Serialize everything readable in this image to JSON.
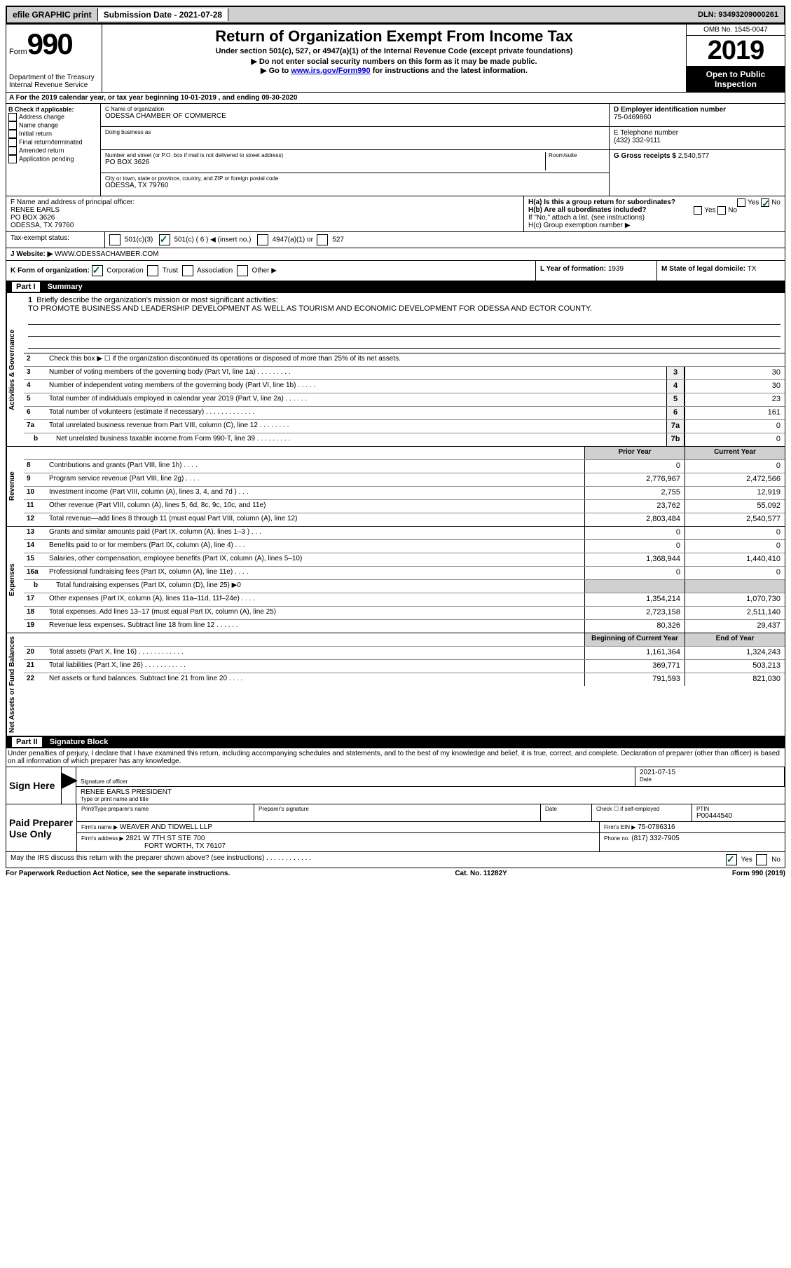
{
  "topbar": {
    "efile": "efile GRAPHIC print",
    "submission": "Submission Date - 2021-07-28",
    "dln": "DLN: 93493209000261"
  },
  "header": {
    "form_word": "Form",
    "form_num": "990",
    "dept": "Department of the Treasury",
    "irs": "Internal Revenue Service",
    "title": "Return of Organization Exempt From Income Tax",
    "subtitle": "Under section 501(c), 527, or 4947(a)(1) of the Internal Revenue Code (except private foundations)",
    "instr1": "▶ Do not enter social security numbers on this form as it may be made public.",
    "instr2_pre": "▶ Go to ",
    "instr2_link": "www.irs.gov/Form990",
    "instr2_post": " for instructions and the latest information.",
    "omb": "OMB No. 1545-0047",
    "year": "2019",
    "open_public": "Open to Public Inspection"
  },
  "row_a": "A For the 2019 calendar year, or tax year beginning 10-01-2019    , and ending 09-30-2020",
  "col_b": {
    "title": "B Check if applicable:",
    "items": [
      "Address change",
      "Name change",
      "Initial return",
      "Final return/terminated",
      "Amended return",
      "Application pending"
    ]
  },
  "col_c": {
    "name_label": "C Name of organization",
    "name": "ODESSA CHAMBER OF COMMERCE",
    "dba_label": "Doing business as",
    "addr_label": "Number and street (or P.O. box if mail is not delivered to street address)",
    "room_label": "Room/suite",
    "addr": "PO BOX 3626",
    "city_label": "City or town, state or province, country, and ZIP or foreign postal code",
    "city": "ODESSA, TX  79760",
    "officer_label": "F  Name and address of principal officer:",
    "officer_name": "RENEE EARLS",
    "officer_addr1": "PO BOX 3626",
    "officer_addr2": "ODESSA, TX  79760"
  },
  "col_d": {
    "ein_label": "D Employer identification number",
    "ein": "75-0469860",
    "phone_label": "E Telephone number",
    "phone": "(432) 332-9111",
    "gross_label": "G Gross receipts $",
    "gross": "2,540,577",
    "ha_label": "H(a)  Is this a group return for subordinates?",
    "hb_label": "H(b)  Are all subordinates included?",
    "hb_note": "If \"No,\" attach a list. (see instructions)",
    "hc_label": "H(c)  Group exemption number ▶",
    "yes": "Yes",
    "no": "No"
  },
  "tax_status": {
    "label": "Tax-exempt status:",
    "c3": "501(c)(3)",
    "c": "501(c) ( 6 ) ◀ (insert no.)",
    "a1": "4947(a)(1) or",
    "s527": "527"
  },
  "website": {
    "label": "J    Website: ▶",
    "value": "WWW.ODESSACHAMBER.COM"
  },
  "form_org": {
    "label": "K Form of organization:",
    "corp": "Corporation",
    "trust": "Trust",
    "assoc": "Association",
    "other": "Other ▶"
  },
  "year_formed": {
    "label": "L Year of formation:",
    "value": "1939"
  },
  "domicile": {
    "label": "M State of legal domicile:",
    "value": "TX"
  },
  "part1": {
    "label": "Part I",
    "title": "Summary",
    "vlabel_gov": "Activities & Governance",
    "vlabel_rev": "Revenue",
    "vlabel_exp": "Expenses",
    "vlabel_net": "Net Assets or Fund Balances",
    "line1_label": "Briefly describe the organization's mission or most significant activities:",
    "mission": "TO PROMOTE BUSINESS AND LEADERSHIP DEVELOPMENT AS WELL AS TOURISM AND ECONOMIC DEVELOPMENT FOR ODESSA AND ECTOR COUNTY.",
    "line2": "Check this box ▶ ☐  if the organization discontinued its operations or disposed of more than 25% of its net assets.",
    "lines_gov": [
      {
        "n": "3",
        "t": "Number of voting members of the governing body (Part VI, line 1a)  .    .    .    .    .    .    .    .    .",
        "box": "3",
        "v": "30"
      },
      {
        "n": "4",
        "t": "Number of independent voting members of the governing body (Part VI, line 1b)  .    .    .    .    .",
        "box": "4",
        "v": "30"
      },
      {
        "n": "5",
        "t": "Total number of individuals employed in calendar year 2019 (Part V, line 2a)  .    .    .    .    .    .",
        "box": "5",
        "v": "23"
      },
      {
        "n": "6",
        "t": "Total number of volunteers (estimate if necessary)    .    .    .    .    .    .    .    .    .    .    .    .    .",
        "box": "6",
        "v": "161"
      },
      {
        "n": "7a",
        "t": "Total unrelated business revenue from Part VIII, column (C), line 12  .    .    .    .    .    .    .    .",
        "box": "7a",
        "v": "0"
      },
      {
        "n": "b",
        "t": "Net unrelated business taxable income from Form 990-T, line 39    .    .    .    .    .    .    .    .    .",
        "box": "7b",
        "v": "0",
        "indent": true
      }
    ],
    "col_prior": "Prior Year",
    "col_current": "Current Year",
    "lines_rev": [
      {
        "n": "8",
        "t": "Contributions and grants (Part VIII, line 1h)    .    .    .    .",
        "p": "0",
        "c": "0"
      },
      {
        "n": "9",
        "t": "Program service revenue (Part VIII, line 2g)    .    .    .    .",
        "p": "2,776,967",
        "c": "2,472,566"
      },
      {
        "n": "10",
        "t": "Investment income (Part VIII, column (A), lines 3, 4, and 7d )    .    .    .",
        "p": "2,755",
        "c": "12,919"
      },
      {
        "n": "11",
        "t": "Other revenue (Part VIII, column (A), lines 5, 6d, 8c, 9c, 10c, and 11e)",
        "p": "23,762",
        "c": "55,092"
      },
      {
        "n": "12",
        "t": "Total revenue—add lines 8 through 11 (must equal Part VIII, column (A), line 12)",
        "p": "2,803,484",
        "c": "2,540,577"
      }
    ],
    "lines_exp": [
      {
        "n": "13",
        "t": "Grants and similar amounts paid (Part IX, column (A), lines 1–3 )  .    .    .",
        "p": "0",
        "c": "0"
      },
      {
        "n": "14",
        "t": "Benefits paid to or for members (Part IX, column (A), line 4)  .    .    .",
        "p": "0",
        "c": "0"
      },
      {
        "n": "15",
        "t": "Salaries, other compensation, employee benefits (Part IX, column (A), lines 5–10)",
        "p": "1,368,944",
        "c": "1,440,410"
      },
      {
        "n": "16a",
        "t": "Professional fundraising fees (Part IX, column (A), line 11e)  .    .    .    .",
        "p": "0",
        "c": "0"
      },
      {
        "n": "b",
        "t": "Total fundraising expenses (Part IX, column (D), line 25) ▶0",
        "p": "",
        "c": "",
        "shaded": true,
        "indent": true
      },
      {
        "n": "17",
        "t": "Other expenses (Part IX, column (A), lines 11a–11d, 11f–24e)  .    .    .    .",
        "p": "1,354,214",
        "c": "1,070,730"
      },
      {
        "n": "18",
        "t": "Total expenses. Add lines 13–17 (must equal Part IX, column (A), line 25)",
        "p": "2,723,158",
        "c": "2,511,140"
      },
      {
        "n": "19",
        "t": "Revenue less expenses. Subtract line 18 from line 12  .    .    .    .    .    .",
        "p": "80,326",
        "c": "29,437"
      }
    ],
    "col_begin": "Beginning of Current Year",
    "col_end": "End of Year",
    "lines_net": [
      {
        "n": "20",
        "t": "Total assets (Part X, line 16)  .    .    .    .    .    .    .    .    .    .    .    .",
        "p": "1,161,364",
        "c": "1,324,243"
      },
      {
        "n": "21",
        "t": "Total liabilities (Part X, line 26)  .    .    .    .    .    .    .    .    .    .    .",
        "p": "369,771",
        "c": "503,213"
      },
      {
        "n": "22",
        "t": "Net assets or fund balances. Subtract line 21 from line 20  .    .    .    .",
        "p": "791,593",
        "c": "821,030"
      }
    ]
  },
  "part2": {
    "label": "Part II",
    "title": "Signature Block",
    "penalties": "Under penalties of perjury, I declare that I have examined this return, including accompanying schedules and statements, and to the best of my knowledge and belief, it is true, correct, and complete. Declaration of preparer (other than officer) is based on all information of which preparer has any knowledge.",
    "sign_here": "Sign Here",
    "sig_officer": "Signature of officer",
    "date": "Date",
    "date_val": "2021-07-15",
    "name_title": "RENEE EARLS  PRESIDENT",
    "type_name": "Type or print name and title",
    "paid_prep": "Paid Preparer Use Only",
    "prep_name_label": "Print/Type preparer's name",
    "prep_sig_label": "Preparer's signature",
    "date_label": "Date",
    "check_if": "Check ☐ if self-employed",
    "ptin_label": "PTIN",
    "ptin": "P00444540",
    "firm_name_label": "Firm's name    ▶",
    "firm_name": "WEAVER AND TIDWELL LLP",
    "firm_ein_label": "Firm's EIN ▶",
    "firm_ein": "75-0786316",
    "firm_addr_label": "Firm's address ▶",
    "firm_addr1": "2821 W 7TH ST STE 700",
    "firm_addr2": "FORT WORTH, TX  76107",
    "phone_label": "Phone no.",
    "phone": "(817) 332-7905",
    "discuss": "May the IRS discuss this return with the preparer shown above? (see instructions)    .    .    .    .    .    .    .    .    .    .    .    ."
  },
  "footer": {
    "left": "For Paperwork Reduction Act Notice, see the separate instructions.",
    "mid": "Cat. No. 11282Y",
    "right": "Form 990 (2019)"
  }
}
